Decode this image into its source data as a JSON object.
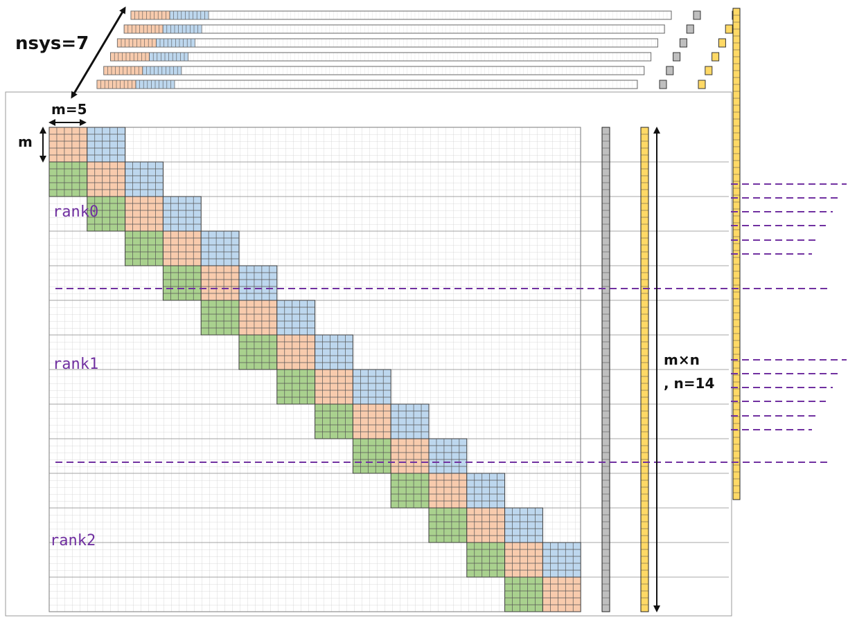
{
  "labels": {
    "nsys": "nsys=7",
    "m_width": "m=5",
    "m_height": "m",
    "total_line1": "m×n",
    "total_line2": ", n=14"
  },
  "ranks": [
    "rank0",
    "rank1",
    "rank2"
  ],
  "parameters": {
    "m": 5,
    "n": 14,
    "nsys": 7,
    "ranks": 3,
    "rows_per_rank": 5
  },
  "colors": {
    "lower": "#a9d18e",
    "diag": "#f8cbad",
    "upper": "#bdd7ee",
    "rhs": "#bfbfbf",
    "solution": "#ffd966",
    "rank_text": "#7030a0",
    "rank_line": "#7030a0",
    "grid": "#d0d0d0"
  }
}
